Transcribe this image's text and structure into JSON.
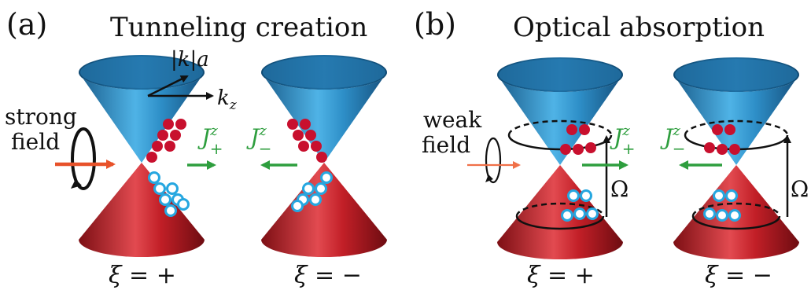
{
  "panels": [
    {
      "label": "(a)",
      "title": "Tunneling creation",
      "field_label_line1": "strong",
      "field_label_line2": "field",
      "axis_label_k": "|k|a",
      "axis_label_kz": "k",
      "axis_label_kz_sub": "z",
      "current_left": {
        "main": "J",
        "sup": "z",
        "sub": "+"
      },
      "current_right": {
        "main": "J",
        "sup": "z",
        "sub": "−"
      },
      "valley_left": "ξ = +",
      "valley_right": "ξ = −"
    },
    {
      "label": "(b)",
      "title": "Optical absorption",
      "field_label_line1": "weak",
      "field_label_line2": "field",
      "transition_label": "Ω",
      "current_left": {
        "main": "J",
        "sup": "z",
        "sub": "+"
      },
      "current_right": {
        "main": "J",
        "sup": "z",
        "sub": "−"
      },
      "valley_left": "ξ = +",
      "valley_right": "ξ = −"
    }
  ],
  "colors": {
    "upper_cone": "#2d8fc4",
    "lower_cone": "#b81d24",
    "electron": "#c8102e",
    "hole_stroke": "#26a7e0",
    "current_arrow": "#2e9e3e",
    "field_arrow_strong": "#e8522a",
    "field_arrow_weak": "#f07048",
    "text": "#111111"
  },
  "icons": [
    "circular-polarization-icon",
    "field-arrow-icon",
    "current-arrow-icon",
    "transition-arrow-icon"
  ]
}
